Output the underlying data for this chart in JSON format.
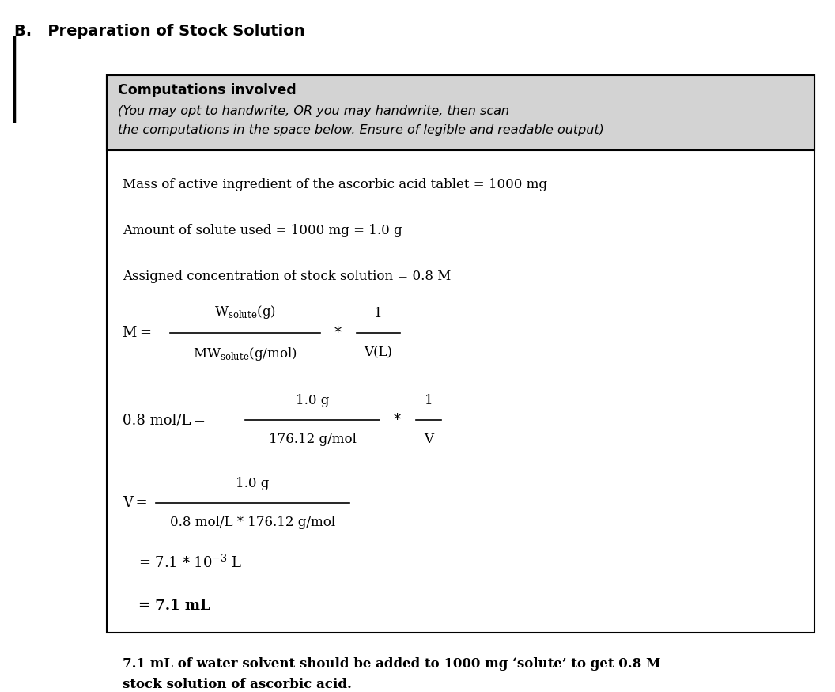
{
  "title": "B.   Preparation of Stock Solution",
  "header_bold": "Computations involved",
  "header_italic_line1": "(You may opt to handwrite, OR you may handwrite, then scan",
  "header_italic_line2": "the computations in the space below. Ensure of legible and readable output)",
  "line1": "Mass of active ingredient of the ascorbic acid tablet = 1000 mg",
  "line2": "Amount of solute used = 1000 mg = 1.0 g",
  "line3": "Assigned concentration of stock solution = 0.8 M",
  "bg_color": "#ffffff",
  "header_bg": "#d3d3d3",
  "box_border": "#000000",
  "text_color": "#000000",
  "conclusion": "7.1 mL of water solvent should be added to 1000 mg ‘solute’ to get 0.8 M\nstock solution of ascorbic acid."
}
